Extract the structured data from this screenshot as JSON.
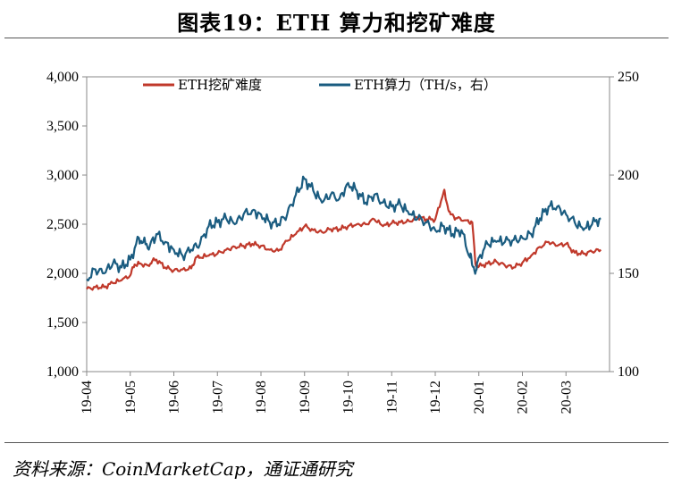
{
  "header": {
    "title": "图表19：ETH 算力和挖矿难度",
    "source": "资料来源：CoinMarketCap，通证通研究"
  },
  "chart_data": {
    "type": "line",
    "title": "图表19：ETH 算力和挖矿难度",
    "xlabel": "",
    "ylabel": "",
    "categories": [
      "19-04",
      "19-05",
      "19-06",
      "19-07",
      "19-08",
      "19-09",
      "19-10",
      "19-11",
      "19-12",
      "20-01",
      "20-02",
      "20-03"
    ],
    "ylim_left": [
      1000,
      4000
    ],
    "ylim_right": [
      100,
      250
    ],
    "yticks_left": [
      "1,000",
      "1,500",
      "2,000",
      "2,500",
      "3,000",
      "3,500",
      "4,000"
    ],
    "yticks_right": [
      "100",
      "150",
      "200",
      "250"
    ],
    "legend_position": "top-center",
    "colors": {
      "difficulty": "#c0392b",
      "hashrate": "#1a5c80"
    },
    "series": [
      {
        "name": "ETH挖矿难度",
        "axis": "left",
        "x": [
          0.0,
          0.2,
          0.4,
          0.6,
          0.8,
          1.0,
          1.1,
          1.2,
          1.4,
          1.5,
          1.6,
          1.8,
          2.0,
          2.2,
          2.4,
          2.5,
          2.6,
          2.8,
          3.0,
          3.2,
          3.4,
          3.6,
          3.8,
          4.0,
          4.2,
          4.4,
          4.6,
          4.8,
          5.0,
          5.2,
          5.4,
          5.6,
          5.8,
          6.0,
          6.2,
          6.4,
          6.6,
          6.8,
          7.0,
          7.2,
          7.4,
          7.6,
          7.8,
          8.0,
          8.2,
          8.25,
          8.35,
          8.5,
          8.7,
          8.85,
          8.92,
          9.0,
          9.2,
          9.4,
          9.6,
          9.8,
          10.0,
          10.2,
          10.4,
          10.6,
          10.8,
          11.0,
          11.2,
          11.4,
          11.6,
          11.8
        ],
        "values": [
          1840,
          1860,
          1860,
          1900,
          1930,
          1980,
          2090,
          2100,
          2080,
          2120,
          2140,
          2060,
          2030,
          2040,
          2050,
          2160,
          2160,
          2180,
          2200,
          2240,
          2270,
          2280,
          2300,
          2280,
          2240,
          2230,
          2330,
          2400,
          2480,
          2440,
          2420,
          2450,
          2450,
          2480,
          2500,
          2500,
          2550,
          2480,
          2510,
          2520,
          2530,
          2570,
          2550,
          2550,
          2840,
          2740,
          2600,
          2560,
          2540,
          2520,
          2100,
          2070,
          2100,
          2120,
          2080,
          2060,
          2110,
          2180,
          2270,
          2320,
          2280,
          2300,
          2210,
          2200,
          2220,
          2240
        ]
      },
      {
        "name": "ETH算力（TH/s，右）",
        "axis": "right",
        "x": [
          0.0,
          0.2,
          0.4,
          0.6,
          0.8,
          1.0,
          1.2,
          1.3,
          1.45,
          1.6,
          1.8,
          2.0,
          2.2,
          2.4,
          2.6,
          2.8,
          3.0,
          3.2,
          3.4,
          3.6,
          3.8,
          4.0,
          4.2,
          4.4,
          4.6,
          4.8,
          5.0,
          5.2,
          5.4,
          5.6,
          5.8,
          6.0,
          6.2,
          6.4,
          6.6,
          6.8,
          7.0,
          7.2,
          7.4,
          7.6,
          7.8,
          8.0,
          8.2,
          8.4,
          8.6,
          8.8,
          8.85,
          8.95,
          9.0,
          9.2,
          9.4,
          9.6,
          9.8,
          10.0,
          10.2,
          10.4,
          10.6,
          10.8,
          11.0,
          11.2,
          11.4,
          11.6,
          11.8
        ],
        "values": [
          147,
          152,
          150,
          155,
          153,
          157,
          168,
          166,
          164,
          170,
          166,
          162,
          159,
          162,
          165,
          174,
          176,
          178,
          175,
          180,
          182,
          180,
          176,
          175,
          180,
          190,
          198,
          192,
          186,
          190,
          188,
          196,
          192,
          186,
          190,
          186,
          184,
          185,
          180,
          178,
          176,
          172,
          174,
          170,
          172,
          158,
          154,
          152,
          158,
          165,
          166,
          166,
          167,
          168,
          170,
          178,
          184,
          184,
          180,
          176,
          172,
          175,
          178
        ]
      }
    ]
  }
}
